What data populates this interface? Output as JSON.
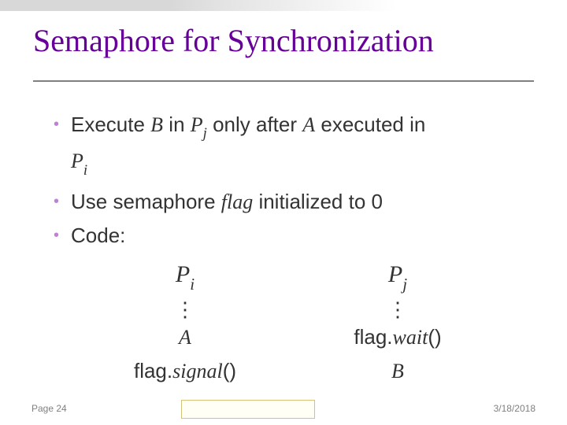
{
  "colors": {
    "title": "#660099",
    "body_text": "#333333",
    "bullet": "#c080d8",
    "rule": "#808080",
    "footer": "#808080",
    "highlight_border": "#d4c27a",
    "background": "#ffffff"
  },
  "typography": {
    "title_family": "Times New Roman",
    "title_size_pt": 40,
    "body_family": "Verdana",
    "body_size_pt": 26,
    "footer_size_pt": 12
  },
  "title": "Semaphore for Synchronization",
  "bullets": [
    {
      "pre": "Execute ",
      "var1": "B",
      "mid1": " in ",
      "var2": "P",
      "sub2": "j",
      "mid2": " only after ",
      "var3": "A",
      "mid3": " executed in ",
      "cont_var": "P",
      "cont_sub": "i"
    },
    {
      "pre": "Use semaphore ",
      "var1": "flag",
      "mid1": " initialized to 0"
    },
    {
      "pre": "Code:"
    }
  ],
  "code": {
    "left": {
      "head_var": "P",
      "head_sub": "i",
      "dots": "⋮",
      "line1_var": "A",
      "line2_pre": "flag.",
      "line2_it": "signal",
      "line2_post": "()"
    },
    "right": {
      "head_var": "P",
      "head_sub": "j",
      "dots": "⋮",
      "line1_pre": "flag.",
      "line1_it": "wait",
      "line1_post": "()",
      "line2_var": "B"
    }
  },
  "footer": {
    "page": "Page 24",
    "date": "3/18/2018"
  }
}
